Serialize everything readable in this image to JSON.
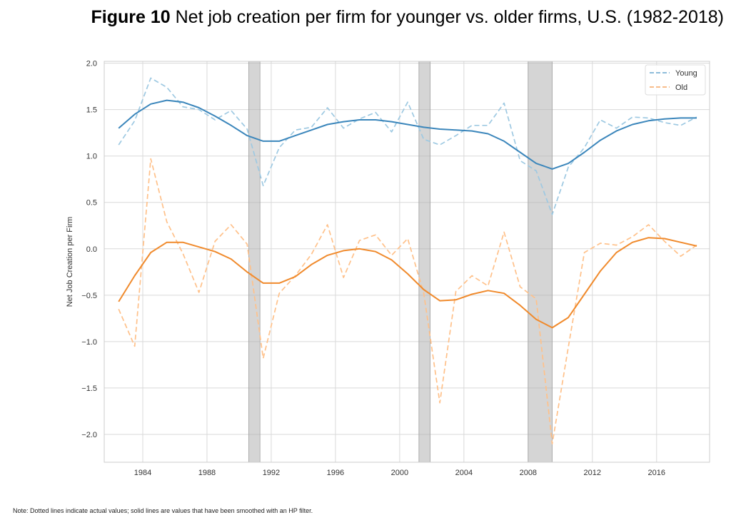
{
  "figure": {
    "label": "Figure 10",
    "title": "Net job creation per firm for younger vs. older firms, U.S. (1982-2018)",
    "note": "Note: Dotted lines indicate actual values; solid lines are values that have been smoothed with an HP filter."
  },
  "chart_data": {
    "type": "line",
    "ylabel": "Net Job Creation per Firm",
    "xlabel": "",
    "xlim": [
      1981.6,
      2019.3
    ],
    "ylim": [
      -2.3,
      2.02
    ],
    "x_ticks": [
      "1984",
      "1988",
      "1992",
      "1996",
      "2000",
      "2004",
      "2008",
      "2012",
      "2016"
    ],
    "x_tick_values": [
      1984,
      1988,
      1992,
      1996,
      2000,
      2004,
      2008,
      2012,
      2016
    ],
    "y_ticks": [
      "2.0",
      "1.5",
      "1.0",
      "0.5",
      "0.0",
      "−0.5",
      "−1.0",
      "−1.5",
      "−2.0"
    ],
    "y_tick_values": [
      2.0,
      1.5,
      1.0,
      0.5,
      0.0,
      -0.5,
      -1.0,
      -1.5,
      -2.0
    ],
    "grid": true,
    "legend_position": "top-right",
    "recession_bands": [
      [
        1990.6,
        1991.3
      ],
      [
        2001.2,
        2001.9
      ],
      [
        2008.0,
        2009.5
      ]
    ],
    "x": [
      1982.5,
      1983.5,
      1984.5,
      1985.5,
      1986.5,
      1987.5,
      1988.5,
      1989.5,
      1990.5,
      1991.5,
      1992.5,
      1993.5,
      1994.5,
      1995.5,
      1996.5,
      1997.5,
      1998.5,
      1999.5,
      2000.5,
      2001.5,
      2002.5,
      2003.5,
      2004.5,
      2005.5,
      2006.5,
      2007.5,
      2008.5,
      2009.5,
      2010.5,
      2011.5,
      2012.5,
      2013.5,
      2014.5,
      2015.5,
      2016.5,
      2017.5,
      2018.5
    ],
    "series": [
      {
        "name": "Young",
        "style": "dashed",
        "color": "#9ec9e2",
        "values": [
          1.12,
          1.38,
          1.84,
          1.74,
          1.53,
          1.5,
          1.39,
          1.49,
          1.29,
          0.68,
          1.09,
          1.28,
          1.31,
          1.52,
          1.3,
          1.4,
          1.47,
          1.26,
          1.58,
          1.18,
          1.12,
          1.22,
          1.33,
          1.33,
          1.57,
          0.95,
          0.84,
          0.37,
          0.88,
          1.09,
          1.39,
          1.3,
          1.42,
          1.41,
          1.36,
          1.33,
          1.42
        ]
      },
      {
        "name": "Old",
        "style": "dashed",
        "color": "#ffc18a",
        "values": [
          -0.65,
          -1.05,
          0.97,
          0.29,
          -0.05,
          -0.47,
          0.08,
          0.26,
          0.05,
          -1.18,
          -0.48,
          -0.29,
          -0.06,
          0.26,
          -0.31,
          0.09,
          0.15,
          -0.07,
          0.11,
          -0.48,
          -1.66,
          -0.46,
          -0.29,
          -0.4,
          0.18,
          -0.41,
          -0.54,
          -2.1,
          -1.06,
          -0.04,
          0.06,
          0.04,
          0.13,
          0.26,
          0.08,
          -0.08,
          0.04
        ]
      },
      {
        "name": "Young (HP-filtered)",
        "style": "solid",
        "color": "#3b86bb",
        "values": [
          1.3,
          1.45,
          1.56,
          1.6,
          1.58,
          1.52,
          1.43,
          1.33,
          1.22,
          1.16,
          1.16,
          1.22,
          1.28,
          1.34,
          1.37,
          1.39,
          1.39,
          1.37,
          1.34,
          1.31,
          1.29,
          1.28,
          1.27,
          1.24,
          1.16,
          1.04,
          0.92,
          0.86,
          0.92,
          1.04,
          1.17,
          1.27,
          1.34,
          1.38,
          1.4,
          1.41,
          1.41
        ]
      },
      {
        "name": "Old (HP-filtered)",
        "style": "solid",
        "color": "#f08a2c",
        "values": [
          -0.57,
          -0.29,
          -0.04,
          0.07,
          0.07,
          0.02,
          -0.03,
          -0.11,
          -0.25,
          -0.37,
          -0.37,
          -0.3,
          -0.17,
          -0.07,
          -0.02,
          0.0,
          -0.03,
          -0.12,
          -0.27,
          -0.44,
          -0.56,
          -0.55,
          -0.49,
          -0.45,
          -0.48,
          -0.61,
          -0.76,
          -0.85,
          -0.74,
          -0.49,
          -0.24,
          -0.04,
          0.07,
          0.12,
          0.11,
          0.07,
          0.03
        ]
      }
    ],
    "legend": [
      {
        "label": "Young",
        "color": "#7fb3d5"
      },
      {
        "label": "Old",
        "color": "#f7b27a"
      }
    ]
  }
}
